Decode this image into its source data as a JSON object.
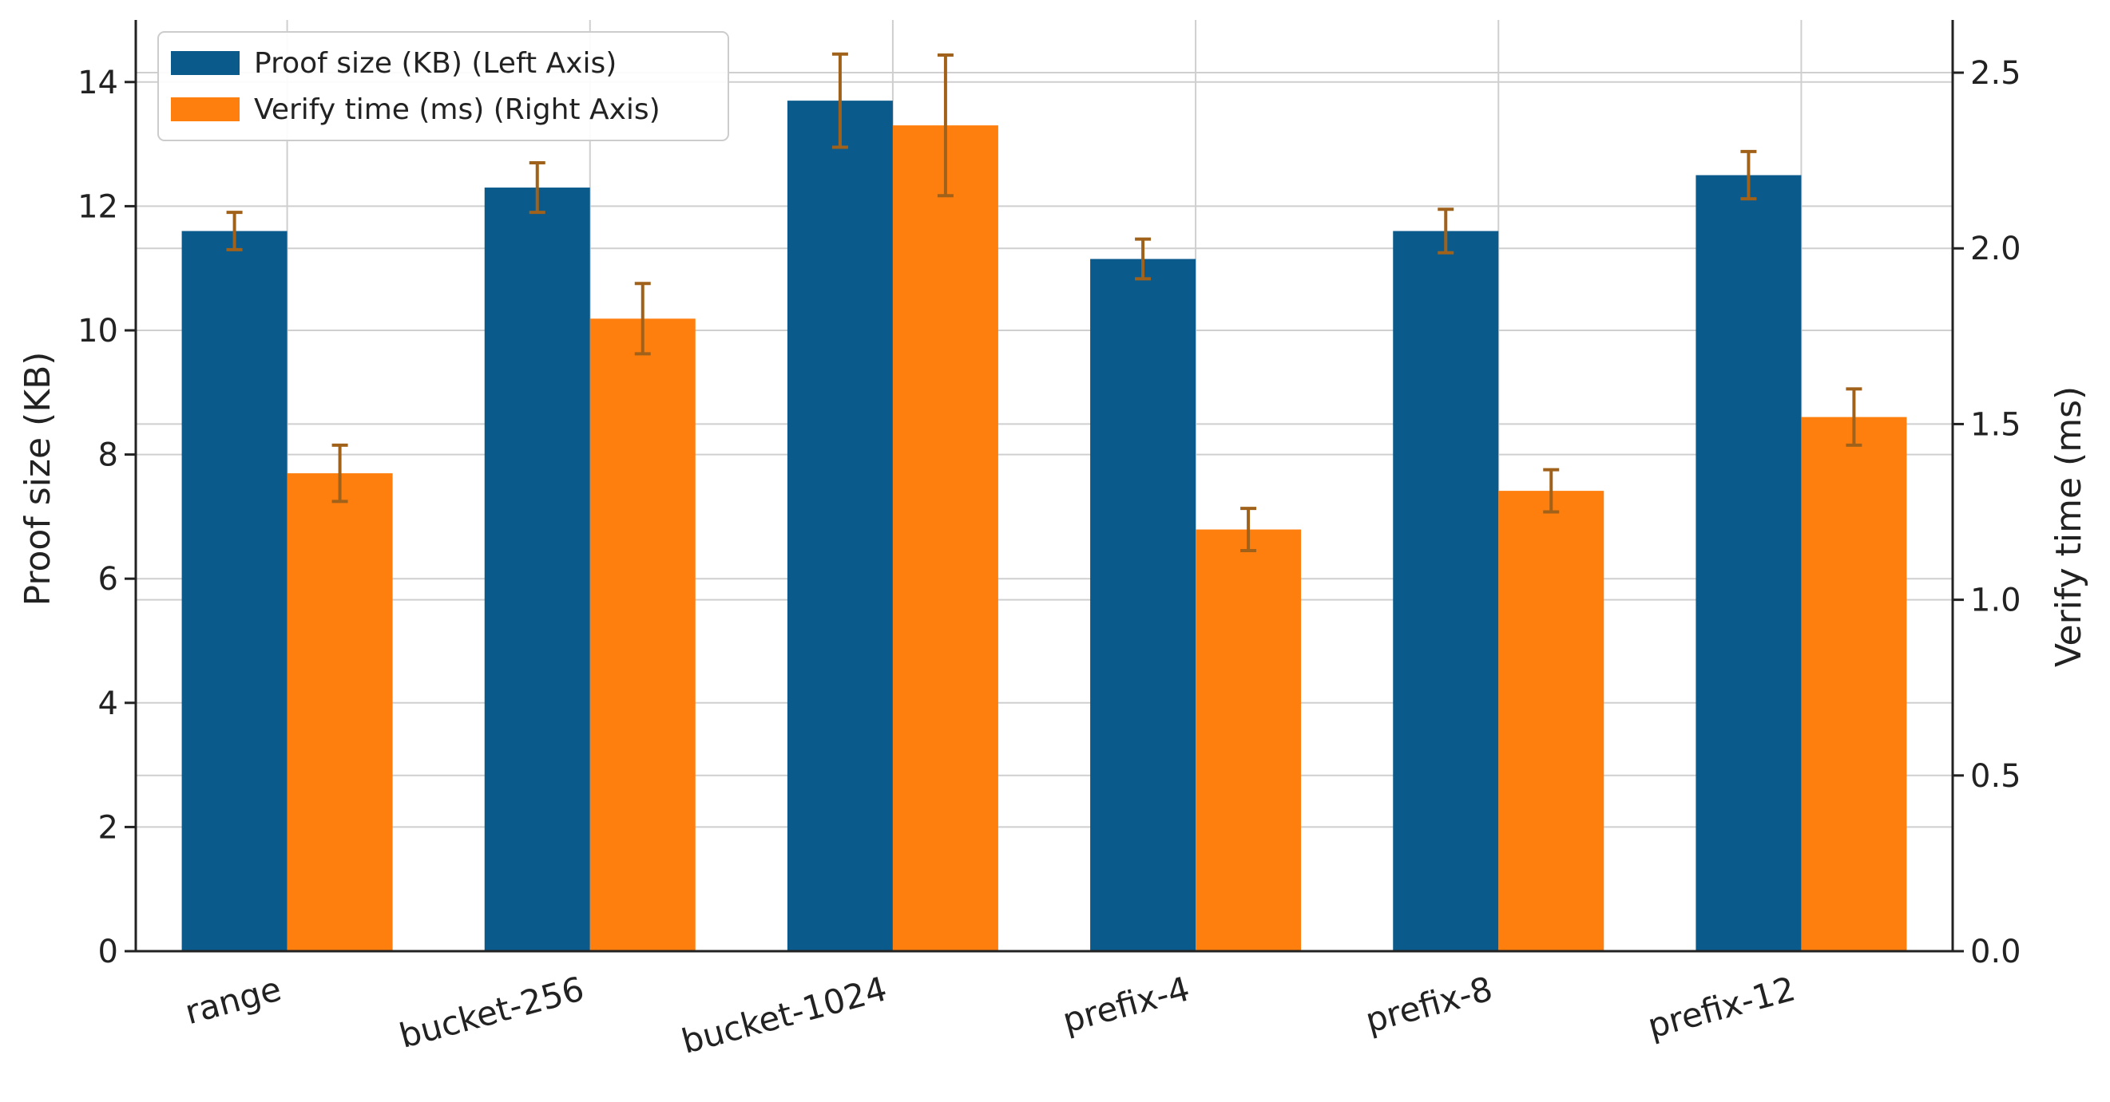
{
  "chart_data": {
    "type": "bar",
    "categories": [
      "range",
      "bucket-256",
      "bucket-1024",
      "prefix-4",
      "prefix-8",
      "prefix-12"
    ],
    "series": [
      {
        "name": "Proof size (KB) (Left Axis)",
        "axis": "left",
        "color": "#0b5a8c",
        "values": [
          11.6,
          12.3,
          13.7,
          11.15,
          11.6,
          12.5
        ],
        "error": [
          0.3,
          0.4,
          0.75,
          0.32,
          0.35,
          0.38
        ]
      },
      {
        "name": "Verify time (ms) (Right Axis)",
        "axis": "right",
        "color": "#ff7f0e",
        "values": [
          1.36,
          1.8,
          2.35,
          1.2,
          1.31,
          1.52
        ],
        "error": [
          0.08,
          0.1,
          0.2,
          0.06,
          0.06,
          0.08
        ]
      }
    ],
    "ylabel": "Proof size (KB)",
    "ylabel_right": "Verify time (ms)",
    "ylim": [
      0,
      15
    ],
    "ylim_right": [
      0,
      2.65
    ],
    "yticks": [
      0,
      2,
      4,
      6,
      8,
      10,
      12,
      14
    ],
    "yticks_right": [
      "0.0",
      "0.5",
      "1.0",
      "1.5",
      "2.0",
      "2.5"
    ],
    "grid": true,
    "legend": "top-left",
    "errorbar_color": "#a0621a"
  }
}
